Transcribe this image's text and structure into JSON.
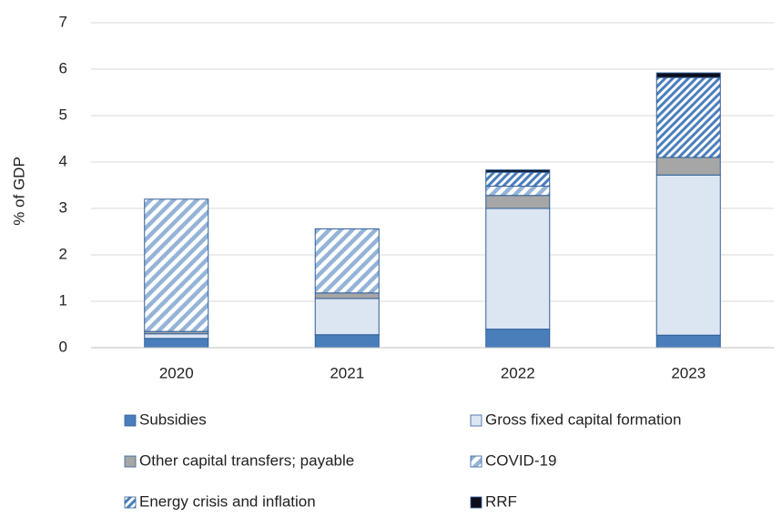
{
  "chart_data": {
    "type": "stacked_bar",
    "y_label": "% of GDP",
    "categories": [
      "2020",
      "2021",
      "2022",
      "2023"
    ],
    "series": [
      {
        "name": "Subsidies",
        "color": "#4a7ebb",
        "values": [
          0.2,
          0.28,
          0.4,
          0.27
        ]
      },
      {
        "name": "Gross fixed capital formation",
        "color": "#dce6f2",
        "values": [
          0.1,
          0.78,
          2.6,
          3.45
        ]
      },
      {
        "name": "Other capital transfers; payable",
        "color": "#a6a6a6",
        "values": [
          0.05,
          0.12,
          0.28,
          0.38
        ]
      },
      {
        "name": "COVID-19",
        "color": "#95b3d7",
        "hatch": "wide",
        "values": [
          2.85,
          1.38,
          0.2,
          0
        ]
      },
      {
        "name": "Energy crisis and inflation",
        "color": "#4a7ebb",
        "hatch": "dense",
        "values": [
          0,
          0,
          0.3,
          1.72
        ]
      },
      {
        "name": "RRF",
        "color": "#0d0d1a",
        "values": [
          0,
          0,
          0.05,
          0.1
        ]
      }
    ],
    "ylim": [
      0,
      7
    ],
    "yticks": [
      0,
      1,
      2,
      3,
      4,
      5,
      6,
      7
    ],
    "grid": true
  }
}
